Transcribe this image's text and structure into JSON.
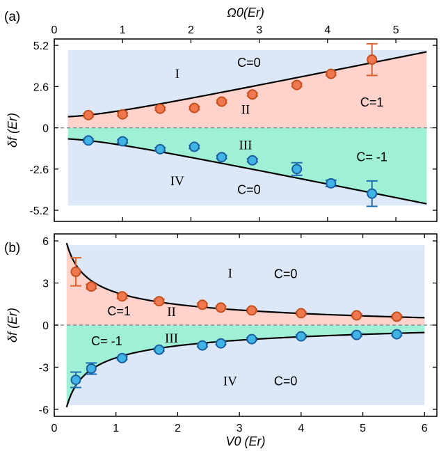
{
  "chart_data": [
    {
      "type": "scatter",
      "panel_label": "(a)",
      "xlabel_top": "Ω0(Er)",
      "ylabel": "δf (Er)",
      "xlim": [
        0,
        5.6
      ],
      "ylim": [
        -5.9,
        5.6
      ],
      "x_ticks": [
        0,
        1,
        2,
        3,
        4,
        5
      ],
      "y_ticks": [
        5.2,
        2.6,
        0,
        -2.6,
        -5.2
      ],
      "y_tick_labels": [
        "5.2",
        "2.6",
        "0",
        "-2.6",
        "-5.2"
      ],
      "region_labels": [
        "I",
        "II",
        "III",
        "IV"
      ],
      "chern_labels": [
        "C=0",
        "C=1",
        "C= -1",
        "C=0"
      ],
      "colors": {
        "upper": "#f07850",
        "lower": "#40b4e4",
        "region_blue": "#dce8f8",
        "region_pink": "#ffd2cc",
        "region_green": "#9ff0d6",
        "err_upper": "#e0602a",
        "err_lower": "#1f6fb5"
      },
      "series": [
        {
          "x": [
            0.5,
            1.0,
            1.55,
            2.05,
            2.45,
            2.9,
            3.55,
            4.05,
            4.65
          ],
          "y": [
            0.8,
            0.85,
            1.2,
            1.25,
            1.65,
            2.1,
            2.7,
            3.4,
            4.3
          ],
          "err": [
            0.1,
            0.1,
            0.1,
            0.1,
            0.1,
            0.1,
            0.1,
            0.1,
            1.0
          ]
        },
        {
          "x": [
            0.5,
            1.0,
            1.55,
            2.05,
            2.45,
            2.9,
            3.55,
            4.05,
            4.65
          ],
          "y": [
            -0.8,
            -0.85,
            -1.35,
            -1.2,
            -1.85,
            -2.05,
            -2.6,
            -3.5,
            -4.15
          ],
          "err": [
            0.1,
            0.1,
            0.1,
            0.1,
            0.1,
            0.1,
            0.4,
            0.2,
            0.8
          ]
        }
      ]
    },
    {
      "type": "scatter",
      "panel_label": "(b)",
      "xlabel": "V0 (Er)",
      "ylabel": "δf (Er)",
      "xlim": [
        0,
        6.2
      ],
      "ylim": [
        -6.5,
        6.5
      ],
      "x_ticks": [
        0,
        1,
        2,
        3,
        4,
        5,
        6
      ],
      "y_ticks": [
        6,
        3,
        0,
        -3,
        -6
      ],
      "y_tick_labels": [
        "6",
        "3",
        "0",
        "-3",
        "-6"
      ],
      "region_labels": [
        "I",
        "II",
        "III",
        "IV"
      ],
      "chern_labels": [
        "C=0",
        "C=1",
        "C= -1",
        "C=0"
      ],
      "series": [
        {
          "x": [
            0.35,
            0.6,
            1.1,
            1.7,
            2.4,
            2.7,
            3.2,
            4.0,
            4.9,
            5.55
          ],
          "y": [
            3.8,
            2.75,
            2.05,
            1.7,
            1.45,
            1.25,
            1.05,
            0.85,
            0.7,
            0.6
          ],
          "err": [
            1.0,
            0.15,
            0.15,
            0.15,
            0.1,
            0.1,
            0.1,
            0.1,
            0.1,
            0.1
          ]
        },
        {
          "x": [
            0.35,
            0.6,
            1.1,
            1.7,
            2.4,
            2.7,
            3.2,
            4.0,
            4.9,
            5.55
          ],
          "y": [
            -3.9,
            -3.1,
            -2.35,
            -1.75,
            -1.45,
            -1.3,
            -1.0,
            -0.8,
            -0.7,
            -0.65
          ],
          "err": [
            0.55,
            0.4,
            0.1,
            0.1,
            0.1,
            0.1,
            0.1,
            0.1,
            0.1,
            0.1
          ]
        }
      ]
    }
  ]
}
